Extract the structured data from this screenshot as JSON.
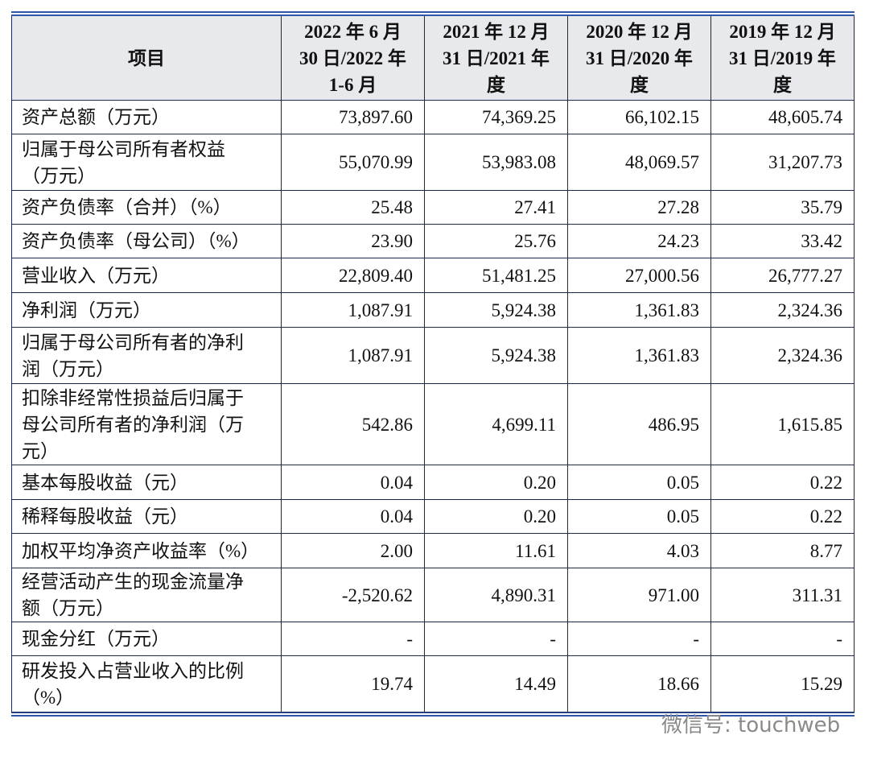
{
  "table": {
    "header": [
      [
        "项目"
      ],
      [
        "2022 年 6 月",
        "30 日/2022 年",
        "1-6 月"
      ],
      [
        "2021 年 12 月",
        "31 日/2021 年",
        "度"
      ],
      [
        "2020 年 12 月",
        "31 日/2020 年",
        "度"
      ],
      [
        "2019 年 12 月",
        "31 日/2019 年",
        "度"
      ]
    ],
    "rows": [
      [
        [
          "资产总额（万元）"
        ],
        "73,897.60",
        "74,369.25",
        "66,102.15",
        "48,605.74"
      ],
      [
        [
          "归属于母公司所有者权益",
          "（万元）"
        ],
        "55,070.99",
        "53,983.08",
        "48,069.57",
        "31,207.73"
      ],
      [
        [
          "资产负债率（合并）（%）"
        ],
        "25.48",
        "27.41",
        "27.28",
        "35.79"
      ],
      [
        [
          "资产负债率（母公司）（%）"
        ],
        "23.90",
        "25.76",
        "24.23",
        "33.42"
      ],
      [
        [
          "营业收入（万元）"
        ],
        "22,809.40",
        "51,481.25",
        "27,000.56",
        "26,777.27"
      ],
      [
        [
          "净利润（万元）"
        ],
        "1,087.91",
        "5,924.38",
        "1,361.83",
        "2,324.36"
      ],
      [
        [
          "归属于母公司所有者的净利",
          "润（万元）"
        ],
        "1,087.91",
        "5,924.38",
        "1,361.83",
        "2,324.36"
      ],
      [
        [
          "扣除非经常性损益后归属于",
          "母公司所有者的净利润（万",
          "元）"
        ],
        "542.86",
        "4,699.11",
        "486.95",
        "1,615.85"
      ],
      [
        [
          "基本每股收益（元）"
        ],
        "0.04",
        "0.20",
        "0.05",
        "0.22"
      ],
      [
        [
          "稀释每股收益（元）"
        ],
        "0.04",
        "0.20",
        "0.05",
        "0.22"
      ],
      [
        [
          "加权平均净资产收益率（%）"
        ],
        "2.00",
        "11.61",
        "4.03",
        "8.77"
      ],
      [
        [
          "经营活动产生的现金流量净",
          "额（万元）"
        ],
        "-2,520.62",
        "4,890.31",
        "971.00",
        "311.31"
      ],
      [
        [
          "现金分红（万元）"
        ],
        "-",
        "-",
        "-",
        "-"
      ],
      [
        [
          "研发投入占营业收入的比例",
          "（%）"
        ],
        "19.74",
        "14.49",
        "18.66",
        "15.29"
      ]
    ]
  },
  "watermark": "微信号: touchweb"
}
